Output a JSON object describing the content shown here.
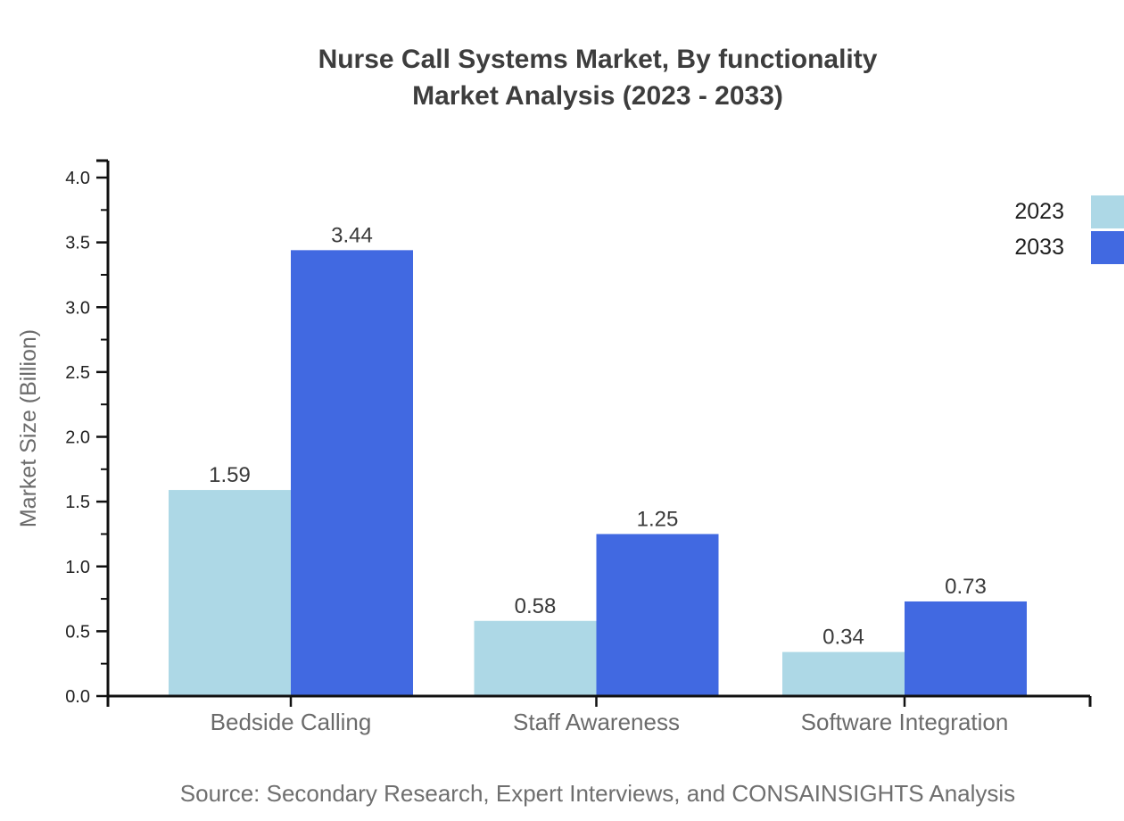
{
  "header": {
    "line1": "Nurse Call Systems Market, By functionality",
    "line2": "Market Analysis (2023 - 2033)"
  },
  "source_note": "Source: Secondary Research, Expert Interviews, and CONSAINSIGHTS Analysis",
  "chart_data": {
    "type": "bar",
    "title": "Nurse Call Systems Market, By functionality Market Analysis (2023 - 2033)",
    "categories": [
      "Bedside Calling",
      "Staff Awareness",
      "Software Integration"
    ],
    "series": [
      {
        "name": "2023",
        "color": "#ADD8E6",
        "values": [
          1.59,
          0.58,
          0.34
        ]
      },
      {
        "name": "2033",
        "color": "#4169E1",
        "values": [
          3.44,
          1.25,
          0.73
        ]
      }
    ],
    "value_labels": [
      "1.59",
      "3.44",
      "0.58",
      "1.25",
      "0.34",
      "0.73"
    ],
    "xlabel": "",
    "ylabel": "Market Size (Billion)",
    "ylim": [
      0,
      4.0
    ],
    "yticks": [
      "0.0",
      "0.5",
      "1.0",
      "1.5",
      "2.0",
      "2.5",
      "3.0",
      "3.5",
      "4.0"
    ],
    "minor_tick_step": 0.25,
    "grid": false,
    "legend_position": "upper-right-edge",
    "colors": {
      "axis": "#111111",
      "tick_label": "#222222",
      "value_label": "#3a3a3a",
      "category_label": "#6b6b6b",
      "axis_title": "#6b6b6b",
      "title_text": "#3d3d3d",
      "source_text": "#6f6f6f"
    }
  }
}
